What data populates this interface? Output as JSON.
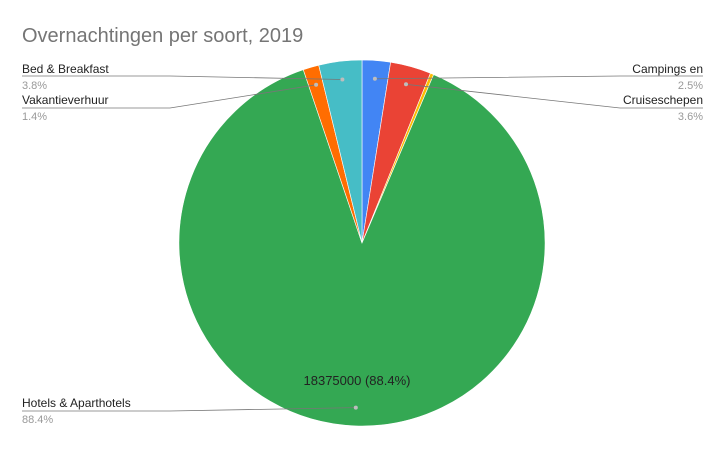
{
  "chart_data": {
    "type": "pie",
    "title": "Overnachtingen per soort, 2019",
    "slices": [
      {
        "name": "Campings en",
        "percent_label": "2.5%",
        "value": 2.5,
        "color": "#4285f4"
      },
      {
        "name": "Cruiseschepen",
        "percent_label": "3.6%",
        "value": 3.6,
        "color": "#ea4335"
      },
      {
        "name": "",
        "percent_label": "",
        "value": 0.3,
        "color": "#fbbc04"
      },
      {
        "name": "Hotels & Aparthotels",
        "percent_label": "88.4%",
        "value": 88.4,
        "color": "#34a853",
        "inside_label": "18375000 (88.4%)"
      },
      {
        "name": "Vakantieverhuur",
        "percent_label": "1.4%",
        "value": 1.4,
        "color": "#ff6d01"
      },
      {
        "name": "Bed & Breakfast",
        "percent_label": "3.8%",
        "value": 3.8,
        "color": "#46bdc6"
      }
    ]
  }
}
